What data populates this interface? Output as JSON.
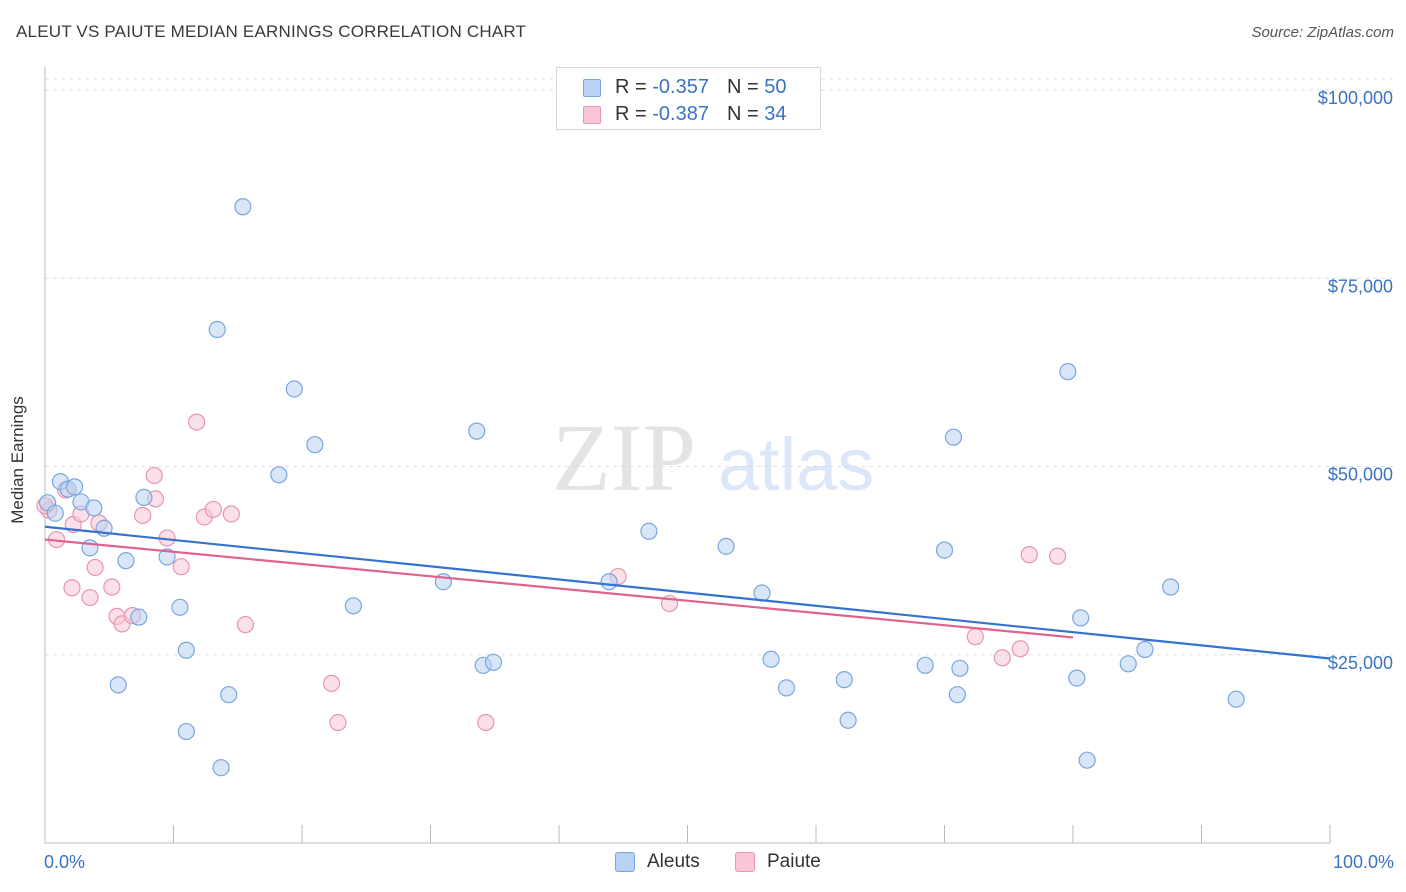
{
  "title": "ALEUT VS PAIUTE MEDIAN EARNINGS CORRELATION CHART",
  "source": "Source: ZipAtlas.com",
  "watermark": {
    "zip": "ZIP",
    "atlas": "atlas"
  },
  "legend": {
    "r_label": "R =",
    "n_label": "N =",
    "entries": [
      {
        "r": "-0.357",
        "n": "50"
      },
      {
        "r": "-0.387",
        "n": "34"
      }
    ]
  },
  "colors": {
    "aleut_fill": "#b9d2f3",
    "aleut_stroke": "#7aa6e0",
    "aleut_line": "#3673d0",
    "paiute_fill": "#f8c6d4",
    "paiute_stroke": "#e994b0",
    "paiute_line": "#e0628d",
    "tick_text": "#3b73c4",
    "grid": "#e0e0e0"
  },
  "chart_data": {
    "type": "scatter",
    "title": "ALEUT VS PAIUTE MEDIAN EARNINGS CORRELATION CHART",
    "xlabel": "",
    "ylabel": "Median Earnings",
    "xlim": [
      0,
      100
    ],
    "ylim": [
      0,
      102000
    ],
    "x_tick_labels": [
      "0.0%",
      "100.0%"
    ],
    "y_ticks": [
      25000,
      50000,
      75000,
      100000
    ],
    "y_tick_labels": [
      "$25,000",
      "$50,000",
      "$75,000",
      "$100,000"
    ],
    "grid": true,
    "legend_position": "top-center",
    "series": [
      {
        "name": "Aleuts",
        "trend": {
          "x": [
            0,
            100
          ],
          "y": [
            42000,
            24500
          ]
        },
        "points": [
          [
            0.2,
            45200
          ],
          [
            0.8,
            43800
          ],
          [
            1.2,
            48000
          ],
          [
            1.8,
            47000
          ],
          [
            2.3,
            47300
          ],
          [
            2.8,
            45300
          ],
          [
            3.5,
            39200
          ],
          [
            3.8,
            44500
          ],
          [
            4.6,
            41800
          ],
          [
            5.7,
            21000
          ],
          [
            6.3,
            37500
          ],
          [
            7.3,
            30000
          ],
          [
            7.7,
            45900
          ],
          [
            9.5,
            38000
          ],
          [
            10.5,
            31300
          ],
          [
            11.0,
            14800
          ],
          [
            11.0,
            25600
          ],
          [
            13.4,
            68200
          ],
          [
            13.7,
            10000
          ],
          [
            14.3,
            19700
          ],
          [
            15.4,
            84500
          ],
          [
            18.2,
            48900
          ],
          [
            19.4,
            60300
          ],
          [
            21.0,
            52900
          ],
          [
            24.0,
            31500
          ],
          [
            33.6,
            54700
          ],
          [
            31.0,
            34700
          ],
          [
            34.1,
            23600
          ],
          [
            34.9,
            24000
          ],
          [
            43.9,
            34700
          ],
          [
            47.0,
            41400
          ],
          [
            53.0,
            39400
          ],
          [
            55.8,
            33200
          ],
          [
            56.5,
            24400
          ],
          [
            57.7,
            20600
          ],
          [
            62.2,
            21700
          ],
          [
            62.5,
            16300
          ],
          [
            68.5,
            23600
          ],
          [
            70.0,
            38900
          ],
          [
            70.7,
            53900
          ],
          [
            71.0,
            19700
          ],
          [
            71.2,
            23200
          ],
          [
            79.6,
            62600
          ],
          [
            80.3,
            21900
          ],
          [
            80.6,
            29900
          ],
          [
            81.1,
            11000
          ],
          [
            84.3,
            23800
          ],
          [
            85.6,
            25700
          ],
          [
            87.6,
            34000
          ],
          [
            92.7,
            19100
          ]
        ]
      },
      {
        "name": "Paiute",
        "trend": {
          "x": [
            0,
            80
          ],
          "y": [
            40300,
            27300
          ]
        },
        "points": [
          [
            0.3,
            44200
          ],
          [
            0.9,
            40300
          ],
          [
            1.6,
            46900
          ],
          [
            2.1,
            33900
          ],
          [
            2.2,
            42300
          ],
          [
            2.8,
            43700
          ],
          [
            3.5,
            32600
          ],
          [
            3.9,
            36600
          ],
          [
            4.2,
            42500
          ],
          [
            5.2,
            34000
          ],
          [
            5.6,
            30100
          ],
          [
            6.0,
            29100
          ],
          [
            6.8,
            30200
          ],
          [
            7.6,
            43500
          ],
          [
            8.5,
            48800
          ],
          [
            8.6,
            45700
          ],
          [
            9.5,
            40500
          ],
          [
            10.6,
            36700
          ],
          [
            11.8,
            55900
          ],
          [
            12.4,
            43300
          ],
          [
            13.1,
            44300
          ],
          [
            14.5,
            43700
          ],
          [
            15.6,
            29000
          ],
          [
            22.3,
            21200
          ],
          [
            22.8,
            16000
          ],
          [
            34.3,
            16000
          ],
          [
            44.6,
            35400
          ],
          [
            48.6,
            31800
          ],
          [
            72.4,
            27400
          ],
          [
            74.5,
            24600
          ],
          [
            75.9,
            25800
          ],
          [
            76.6,
            38300
          ],
          [
            78.8,
            38100
          ],
          [
            0.0,
            44800
          ]
        ]
      }
    ]
  }
}
